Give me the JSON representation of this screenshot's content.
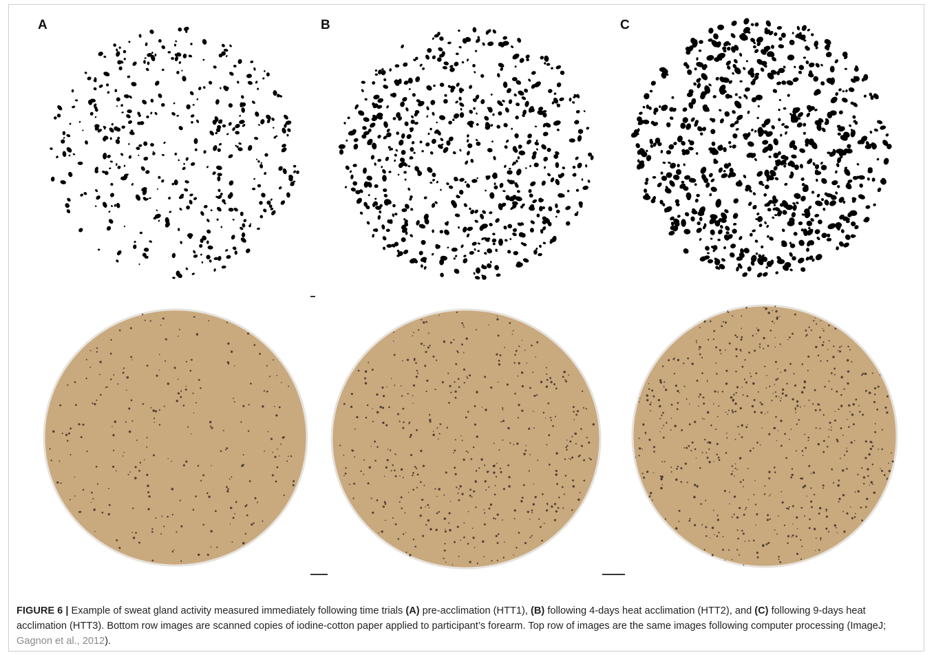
{
  "panels": [
    {
      "label": "A",
      "scalebar": false
    },
    {
      "label": "B",
      "scalebar": true
    },
    {
      "label": "C",
      "scalebar": true
    }
  ],
  "caption": {
    "figure_label": "FIGURE 6 |",
    "intro": " Example of sweat gland activity measured immediately following time trials ",
    "a_label": "(A)",
    "a_text": " pre-acclimation (HTT1), ",
    "b_label": "(B)",
    "b_text": " following 4-days heat acclimation (HTT2), and ",
    "c_label": "(C)",
    "c_text": " following 9-days heat acclimation (HTT3). Bottom row images are scanned copies of iodine-cotton paper applied to participant’s forearm. Top row of images are the same images following computer processing (ImageJ; ",
    "reference": "Gagnon et al., 2012",
    "end": ")."
  },
  "colors": {
    "paper_fill": "#c9a97e",
    "paper_dot": "#3d3027",
    "processed_dot": "#000000"
  }
}
